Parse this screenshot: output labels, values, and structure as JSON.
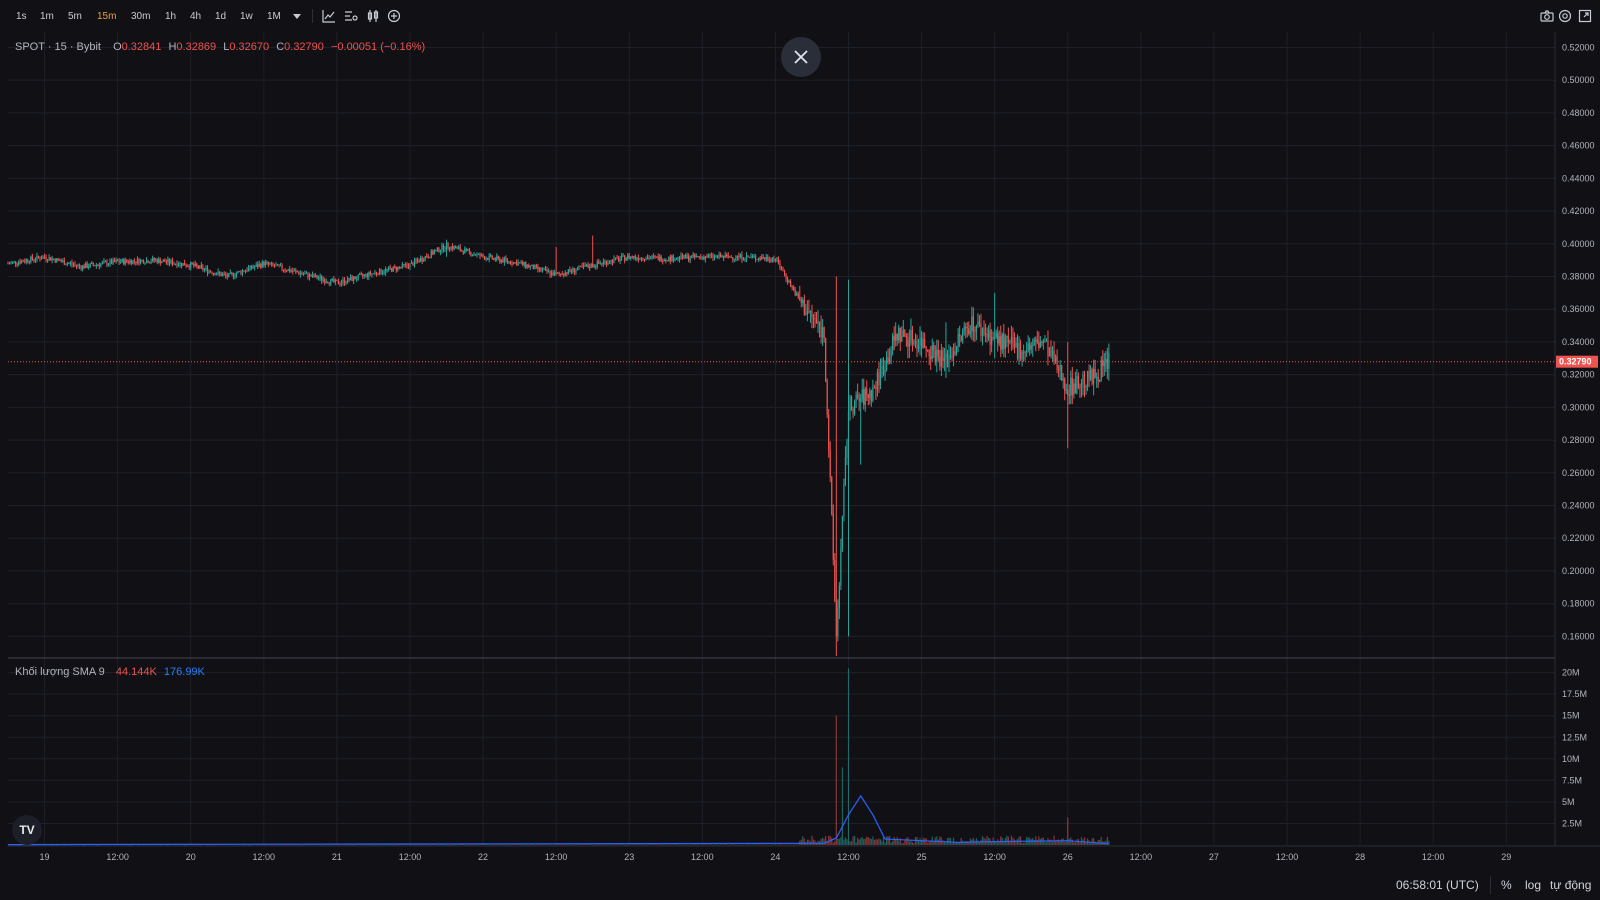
{
  "toolbar": {
    "timeframes": [
      "1s",
      "1m",
      "5m",
      "15m",
      "30m",
      "1h",
      "4h",
      "1d",
      "1w",
      "1M"
    ],
    "active_timeframe": "15m"
  },
  "legend": {
    "symbol": "SPOT · 15 · Bybit",
    "o_label": "O",
    "o_value": "0.32841",
    "h_label": "H",
    "h_value": "0.32869",
    "l_label": "L",
    "l_value": "0.32670",
    "c_label": "C",
    "c_value": "0.32790",
    "change": "−0.00051 (−0.16%)"
  },
  "volume_legend": {
    "title": "Khối lượng SMA 9",
    "value1": "44.144K",
    "value2": "176.99K"
  },
  "statusbar": {
    "time": "06:58:01 (UTC)",
    "percent": "%",
    "log": "log",
    "auto": "tự động"
  },
  "colors": {
    "up": "#26a69a",
    "down": "#ef5350",
    "background": "#101015",
    "grid": "#1d2029",
    "sma": "#2962ff"
  },
  "chart_data": {
    "type": "candlestick",
    "price_axis": {
      "ticks": [
        "0.52000",
        "0.50000",
        "0.48000",
        "0.46000",
        "0.44000",
        "0.42000",
        "0.40000",
        "0.38000",
        "0.36000",
        "0.34000",
        "0.32000",
        "0.30000",
        "0.28000",
        "0.26000",
        "0.24000",
        "0.22000",
        "0.20000",
        "0.18000",
        "0.16000"
      ],
      "ylim": [
        0.148,
        0.527
      ],
      "last_price": "0.32790"
    },
    "volume_axis": {
      "ticks": [
        "20M",
        "17.5M",
        "15M",
        "12.5M",
        "10M",
        "7.5M",
        "5M",
        "2.5M"
      ],
      "ylim": [
        0,
        21000000
      ]
    },
    "time_axis": {
      "ticks": [
        "19",
        "12:00",
        "20",
        "12:00",
        "21",
        "12:00",
        "22",
        "12:00",
        "23",
        "12:00",
        "24",
        "12:00",
        "25",
        "12:00",
        "26",
        "12:00",
        "27",
        "12:00",
        "28",
        "12:00",
        "29"
      ],
      "start": "2024-12-18 18:00",
      "end": "2024-12-29 08:00",
      "last_bar": "2024-12-26 06:45"
    },
    "price_path": [
      [
        "2024-12-18 18:00",
        0.388
      ],
      [
        "2024-12-19 00:00",
        0.392
      ],
      [
        "2024-12-19 06:00",
        0.386
      ],
      [
        "2024-12-19 12:00",
        0.389
      ],
      [
        "2024-12-19 18:00",
        0.39
      ],
      [
        "2024-12-20 00:00",
        0.387
      ],
      [
        "2024-12-20 06:00",
        0.38
      ],
      [
        "2024-12-20 12:00",
        0.388
      ],
      [
        "2024-12-20 18:00",
        0.382
      ],
      [
        "2024-12-21 00:00",
        0.376
      ],
      [
        "2024-12-21 06:00",
        0.382
      ],
      [
        "2024-12-21 12:00",
        0.387
      ],
      [
        "2024-12-21 18:00",
        0.399
      ],
      [
        "2024-12-22 00:00",
        0.392
      ],
      [
        "2024-12-22 06:00",
        0.388
      ],
      [
        "2024-12-22 12:00",
        0.381
      ],
      [
        "2024-12-22 18:00",
        0.387
      ],
      [
        "2024-12-23 00:00",
        0.392
      ],
      [
        "2024-12-23 06:00",
        0.391
      ],
      [
        "2024-12-23 12:00",
        0.392
      ],
      [
        "2024-12-23 18:00",
        0.392
      ],
      [
        "2024-12-24 00:00",
        0.391
      ],
      [
        "2024-12-24 04:00",
        0.365
      ],
      [
        "2024-12-24 08:00",
        0.345
      ],
      [
        "2024-12-24 10:00",
        0.16
      ],
      [
        "2024-12-24 12:00",
        0.3
      ],
      [
        "2024-12-24 16:00",
        0.31
      ],
      [
        "2024-12-24 20:00",
        0.345
      ],
      [
        "2024-12-25 00:00",
        0.34
      ],
      [
        "2024-12-25 04:00",
        0.328
      ],
      [
        "2024-12-25 08:00",
        0.352
      ],
      [
        "2024-12-25 12:00",
        0.342
      ],
      [
        "2024-12-25 16:00",
        0.335
      ],
      [
        "2024-12-25 20:00",
        0.34
      ],
      [
        "2024-12-26 00:00",
        0.312
      ],
      [
        "2024-12-26 04:00",
        0.318
      ],
      [
        "2024-12-26 06:45",
        0.328
      ]
    ],
    "spikes": [
      {
        "time": "2024-12-21 18:00",
        "high": 0.402,
        "low": 0.392
      },
      {
        "time": "2024-12-22 12:00",
        "high": 0.398,
        "low": 0.386
      },
      {
        "time": "2024-12-22 18:00",
        "high": 0.405,
        "low": 0.388
      },
      {
        "time": "2024-12-24 10:00",
        "high": 0.38,
        "low": 0.148
      },
      {
        "time": "2024-12-24 12:00",
        "high": 0.378,
        "low": 0.16
      },
      {
        "time": "2024-12-24 14:00",
        "high": 0.3,
        "low": 0.265
      },
      {
        "time": "2024-12-25 04:00",
        "high": 0.352,
        "low": 0.318
      },
      {
        "time": "2024-12-25 12:00",
        "high": 0.37,
        "low": 0.33
      },
      {
        "time": "2024-12-26 00:00",
        "high": 0.34,
        "low": 0.275
      }
    ],
    "volume_spikes": [
      {
        "time": "2024-12-24 10:00",
        "value": 15000000
      },
      {
        "time": "2024-12-24 12:00",
        "value": 20500000
      },
      {
        "time": "2024-12-24 11:00",
        "value": 9000000
      },
      {
        "time": "2024-12-26 00:00",
        "value": 3200000
      }
    ],
    "volume_sma": [
      [
        "2024-12-18 18:00",
        50000
      ],
      [
        "2024-12-24 08:00",
        200000
      ],
      [
        "2024-12-24 10:00",
        800000
      ],
      [
        "2024-12-24 12:00",
        3500000
      ],
      [
        "2024-12-24 14:00",
        5700000
      ],
      [
        "2024-12-24 16:00",
        3500000
      ],
      [
        "2024-12-24 18:00",
        700000
      ],
      [
        "2024-12-25 06:00",
        300000
      ],
      [
        "2024-12-25 12:00",
        400000
      ],
      [
        "2024-12-26 00:00",
        500000
      ],
      [
        "2024-12-26 06:45",
        150000
      ]
    ]
  }
}
